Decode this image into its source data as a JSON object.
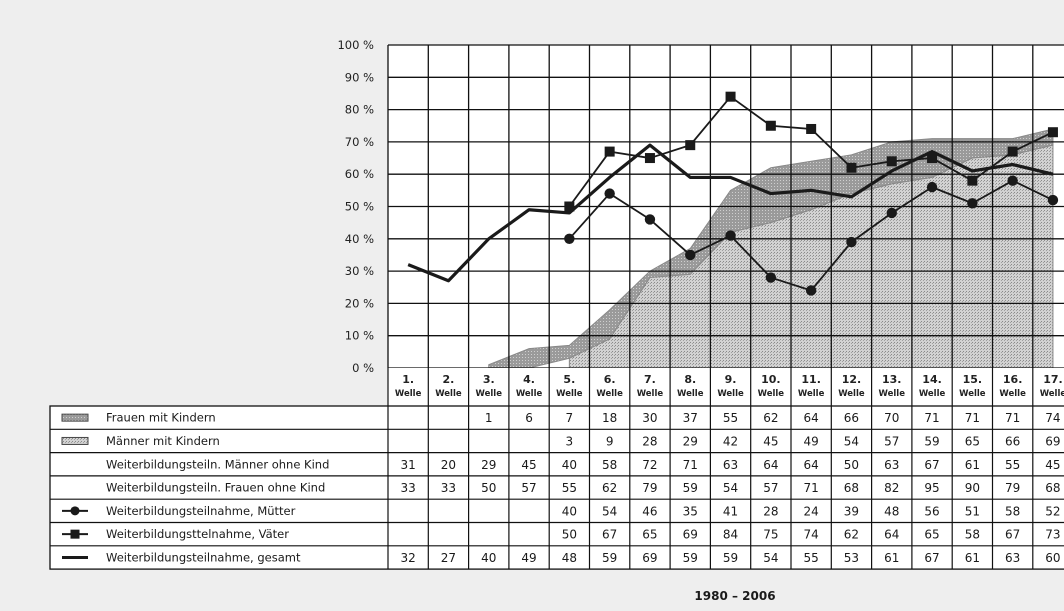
{
  "chart_data": {
    "type": "line",
    "y_tick_labels": [
      "0 %",
      "10 %",
      "20 %",
      "30 %",
      "40 %",
      "50 %",
      "60 %",
      "70 %",
      "80 %",
      "90 %",
      "100 %"
    ],
    "ylim": [
      0,
      100
    ],
    "grid": true,
    "categories": [
      "1.",
      "2.",
      "3.",
      "4.",
      "5.",
      "6.",
      "7.",
      "8.",
      "9.",
      "10.",
      "11.",
      "12.",
      "13.",
      "14.",
      "15.",
      "16.",
      "17."
    ],
    "category_sublabel": "Welle",
    "xlabel": "1980 – 2006",
    "series": [
      {
        "name": "Frauen mit Kindern",
        "style": "area-dark",
        "values": [
          null,
          null,
          1,
          6,
          7,
          18,
          30,
          37,
          55,
          62,
          64,
          66,
          70,
          71,
          71,
          71,
          74
        ]
      },
      {
        "name": "Männer mit Kindern",
        "style": "area-light",
        "values": [
          null,
          null,
          null,
          null,
          3,
          9,
          28,
          29,
          42,
          45,
          49,
          54,
          57,
          59,
          65,
          66,
          69
        ]
      },
      {
        "name": "Weiterbildungsteiln. Männer ohne Kind",
        "style": "table-only",
        "values": [
          31,
          20,
          29,
          45,
          40,
          58,
          72,
          71,
          63,
          64,
          64,
          50,
          63,
          67,
          61,
          55,
          45
        ]
      },
      {
        "name": "Weiterbildungsteiln. Frauen ohne Kind",
        "style": "table-only",
        "values": [
          33,
          33,
          50,
          57,
          55,
          62,
          79,
          59,
          54,
          57,
          71,
          68,
          82,
          95,
          90,
          79,
          68
        ]
      },
      {
        "name": "Weiterbildungsteilnahme, Mütter",
        "style": "line-circle",
        "values": [
          null,
          null,
          null,
          null,
          40,
          54,
          46,
          35,
          41,
          28,
          24,
          39,
          48,
          56,
          51,
          58,
          52
        ]
      },
      {
        "name": "Weiterbildungsttelnahme, Väter",
        "style": "line-square",
        "values": [
          null,
          null,
          null,
          null,
          50,
          67,
          65,
          69,
          84,
          75,
          74,
          62,
          64,
          65,
          58,
          67,
          73
        ]
      },
      {
        "name": "Weiterbildungsteilnahme, gesamt",
        "style": "line-thick",
        "values": [
          32,
          27,
          40,
          49,
          48,
          59,
          69,
          59,
          59,
          54,
          55,
          53,
          61,
          67,
          61,
          63,
          60
        ]
      }
    ]
  }
}
